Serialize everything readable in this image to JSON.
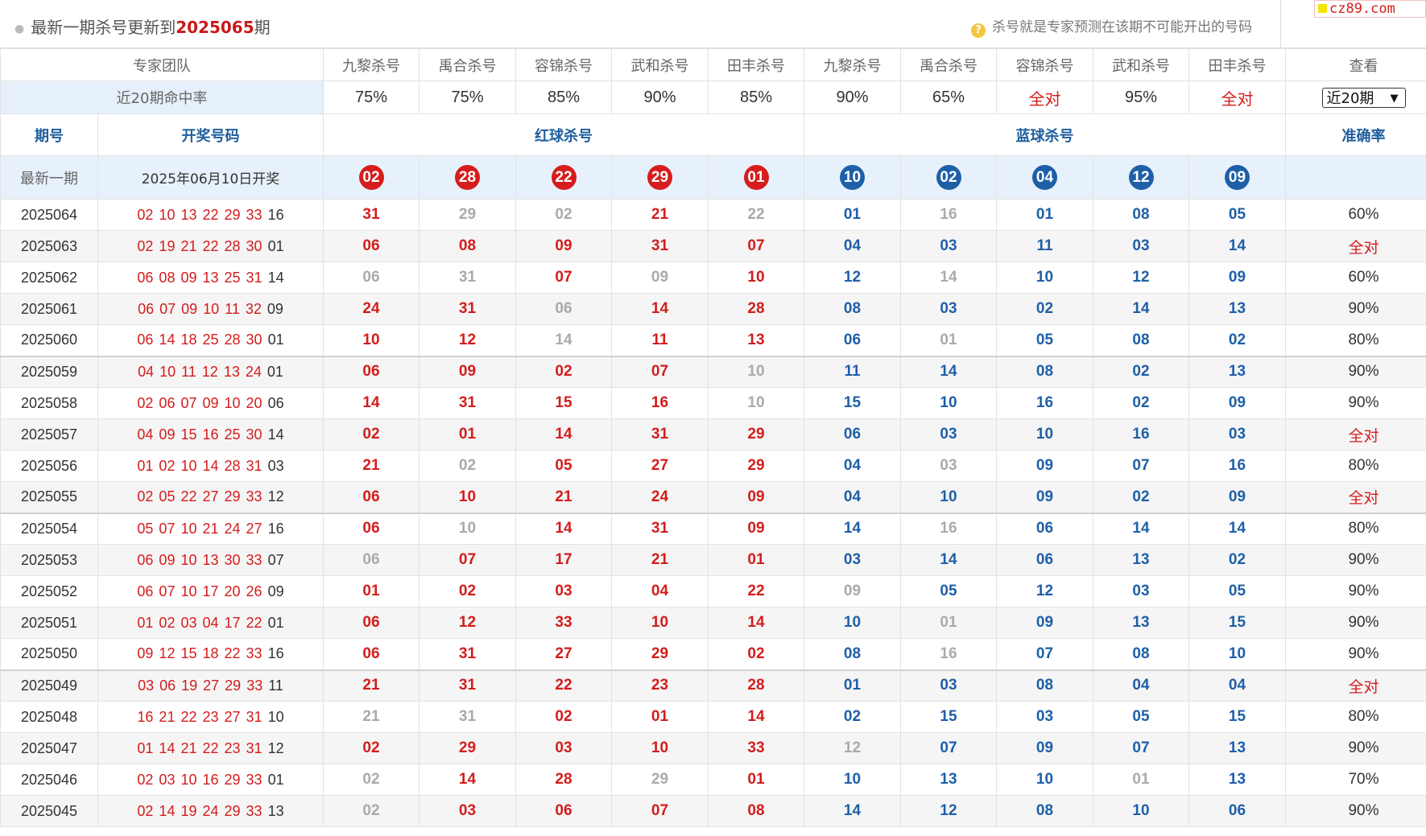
{
  "header": {
    "title_prefix": "最新一期杀号更新到",
    "period": "2025065",
    "title_suffix": "期",
    "note": "杀号就是专家预测在该期不可能开出的号码",
    "brand": "cz89.com"
  },
  "experts_row": {
    "team_label": "专家团队",
    "experts": [
      "九黎杀号",
      "禹合杀号",
      "容锦杀号",
      "武和杀号",
      "田丰杀号",
      "九黎杀号",
      "禹合杀号",
      "容锦杀号",
      "武和杀号",
      "田丰杀号"
    ],
    "view_label": "查看"
  },
  "rate_row": {
    "label": "近20期命中率",
    "rates": [
      "75%",
      "75%",
      "85%",
      "90%",
      "85%",
      "90%",
      "65%",
      "全对",
      "95%",
      "全对"
    ],
    "select_value": "近20期"
  },
  "columns": {
    "issue": "期号",
    "draw": "开奖号码",
    "red_kill": "红球杀号",
    "blue_kill": "蓝球杀号",
    "accuracy": "准确率"
  },
  "latest": {
    "label": "最新一期",
    "date": "2025年06月10日开奖",
    "red_balls": [
      "02",
      "28",
      "22",
      "29",
      "01"
    ],
    "blue_balls": [
      "10",
      "02",
      "04",
      "12",
      "09"
    ]
  },
  "rows": [
    {
      "issue": "2025064",
      "draw_red": "02 10 13 22 29 33",
      "draw_blue": "16",
      "red": [
        "31",
        "29",
        "02",
        "21",
        "22"
      ],
      "red_miss": [
        false,
        true,
        true,
        false,
        true
      ],
      "blue": [
        "01",
        "16",
        "01",
        "08",
        "05"
      ],
      "blue_miss": [
        false,
        true,
        false,
        false,
        false
      ],
      "accuracy": "60%"
    },
    {
      "issue": "2025063",
      "draw_red": "02 19 21 22 28 30",
      "draw_blue": "01",
      "red": [
        "06",
        "08",
        "09",
        "31",
        "07"
      ],
      "red_miss": [
        false,
        false,
        false,
        false,
        false
      ],
      "blue": [
        "04",
        "03",
        "11",
        "03",
        "14"
      ],
      "blue_miss": [
        false,
        false,
        false,
        false,
        false
      ],
      "accuracy": "全对"
    },
    {
      "issue": "2025062",
      "draw_red": "06 08 09 13 25 31",
      "draw_blue": "14",
      "red": [
        "06",
        "31",
        "07",
        "09",
        "10"
      ],
      "red_miss": [
        true,
        true,
        false,
        true,
        false
      ],
      "blue": [
        "12",
        "14",
        "10",
        "12",
        "09"
      ],
      "blue_miss": [
        false,
        true,
        false,
        false,
        false
      ],
      "accuracy": "60%"
    },
    {
      "issue": "2025061",
      "draw_red": "06 07 09 10 11 32",
      "draw_blue": "09",
      "red": [
        "24",
        "31",
        "06",
        "14",
        "28"
      ],
      "red_miss": [
        false,
        false,
        true,
        false,
        false
      ],
      "blue": [
        "08",
        "03",
        "02",
        "14",
        "13"
      ],
      "blue_miss": [
        false,
        false,
        false,
        false,
        false
      ],
      "accuracy": "90%"
    },
    {
      "issue": "2025060",
      "draw_red": "06 14 18 25 28 30",
      "draw_blue": "01",
      "red": [
        "10",
        "12",
        "14",
        "11",
        "13"
      ],
      "red_miss": [
        false,
        false,
        true,
        false,
        false
      ],
      "blue": [
        "06",
        "01",
        "05",
        "08",
        "02"
      ],
      "blue_miss": [
        false,
        true,
        false,
        false,
        false
      ],
      "accuracy": "80%"
    },
    {
      "issue": "2025059",
      "draw_red": "04 10 11 12 13 24",
      "draw_blue": "01",
      "red": [
        "06",
        "09",
        "02",
        "07",
        "10"
      ],
      "red_miss": [
        false,
        false,
        false,
        false,
        true
      ],
      "blue": [
        "11",
        "14",
        "08",
        "02",
        "13"
      ],
      "blue_miss": [
        false,
        false,
        false,
        false,
        false
      ],
      "accuracy": "90%"
    },
    {
      "issue": "2025058",
      "draw_red": "02 06 07 09 10 20",
      "draw_blue": "06",
      "red": [
        "14",
        "31",
        "15",
        "16",
        "10"
      ],
      "red_miss": [
        false,
        false,
        false,
        false,
        true
      ],
      "blue": [
        "15",
        "10",
        "16",
        "02",
        "09"
      ],
      "blue_miss": [
        false,
        false,
        false,
        false,
        false
      ],
      "accuracy": "90%"
    },
    {
      "issue": "2025057",
      "draw_red": "04 09 15 16 25 30",
      "draw_blue": "14",
      "red": [
        "02",
        "01",
        "14",
        "31",
        "29"
      ],
      "red_miss": [
        false,
        false,
        false,
        false,
        false
      ],
      "blue": [
        "06",
        "03",
        "10",
        "16",
        "03"
      ],
      "blue_miss": [
        false,
        false,
        false,
        false,
        false
      ],
      "accuracy": "全对"
    },
    {
      "issue": "2025056",
      "draw_red": "01 02 10 14 28 31",
      "draw_blue": "03",
      "red": [
        "21",
        "02",
        "05",
        "27",
        "29"
      ],
      "red_miss": [
        false,
        true,
        false,
        false,
        false
      ],
      "blue": [
        "04",
        "03",
        "09",
        "07",
        "16"
      ],
      "blue_miss": [
        false,
        true,
        false,
        false,
        false
      ],
      "accuracy": "80%"
    },
    {
      "issue": "2025055",
      "draw_red": "02 05 22 27 29 33",
      "draw_blue": "12",
      "red": [
        "06",
        "10",
        "21",
        "24",
        "09"
      ],
      "red_miss": [
        false,
        false,
        false,
        false,
        false
      ],
      "blue": [
        "04",
        "10",
        "09",
        "02",
        "09"
      ],
      "blue_miss": [
        false,
        false,
        false,
        false,
        false
      ],
      "accuracy": "全对"
    },
    {
      "issue": "2025054",
      "draw_red": "05 07 10 21 24 27",
      "draw_blue": "16",
      "red": [
        "06",
        "10",
        "14",
        "31",
        "09"
      ],
      "red_miss": [
        false,
        true,
        false,
        false,
        false
      ],
      "blue": [
        "14",
        "16",
        "06",
        "14",
        "14"
      ],
      "blue_miss": [
        false,
        true,
        false,
        false,
        false
      ],
      "accuracy": "80%"
    },
    {
      "issue": "2025053",
      "draw_red": "06 09 10 13 30 33",
      "draw_blue": "07",
      "red": [
        "06",
        "07",
        "17",
        "21",
        "01"
      ],
      "red_miss": [
        true,
        false,
        false,
        false,
        false
      ],
      "blue": [
        "03",
        "14",
        "06",
        "13",
        "02"
      ],
      "blue_miss": [
        false,
        false,
        false,
        false,
        false
      ],
      "accuracy": "90%"
    },
    {
      "issue": "2025052",
      "draw_red": "06 07 10 17 20 26",
      "draw_blue": "09",
      "red": [
        "01",
        "02",
        "03",
        "04",
        "22"
      ],
      "red_miss": [
        false,
        false,
        false,
        false,
        false
      ],
      "blue": [
        "09",
        "05",
        "12",
        "03",
        "05"
      ],
      "blue_miss": [
        true,
        false,
        false,
        false,
        false
      ],
      "accuracy": "90%"
    },
    {
      "issue": "2025051",
      "draw_red": "01 02 03 04 17 22",
      "draw_blue": "01",
      "red": [
        "06",
        "12",
        "33",
        "10",
        "14"
      ],
      "red_miss": [
        false,
        false,
        false,
        false,
        false
      ],
      "blue": [
        "10",
        "01",
        "09",
        "13",
        "15"
      ],
      "blue_miss": [
        false,
        true,
        false,
        false,
        false
      ],
      "accuracy": "90%"
    },
    {
      "issue": "2025050",
      "draw_red": "09 12 15 18 22 33",
      "draw_blue": "16",
      "red": [
        "06",
        "31",
        "27",
        "29",
        "02"
      ],
      "red_miss": [
        false,
        false,
        false,
        false,
        false
      ],
      "blue": [
        "08",
        "16",
        "07",
        "08",
        "10"
      ],
      "blue_miss": [
        false,
        true,
        false,
        false,
        false
      ],
      "accuracy": "90%"
    },
    {
      "issue": "2025049",
      "draw_red": "03 06 19 27 29 33",
      "draw_blue": "11",
      "red": [
        "21",
        "31",
        "22",
        "23",
        "28"
      ],
      "red_miss": [
        false,
        false,
        false,
        false,
        false
      ],
      "blue": [
        "01",
        "03",
        "08",
        "04",
        "04"
      ],
      "blue_miss": [
        false,
        false,
        false,
        false,
        false
      ],
      "accuracy": "全对"
    },
    {
      "issue": "2025048",
      "draw_red": "16 21 22 23 27 31",
      "draw_blue": "10",
      "red": [
        "21",
        "31",
        "02",
        "01",
        "14"
      ],
      "red_miss": [
        true,
        true,
        false,
        false,
        false
      ],
      "blue": [
        "02",
        "15",
        "03",
        "05",
        "15"
      ],
      "blue_miss": [
        false,
        false,
        false,
        false,
        false
      ],
      "accuracy": "80%"
    },
    {
      "issue": "2025047",
      "draw_red": "01 14 21 22 23 31",
      "draw_blue": "12",
      "red": [
        "02",
        "29",
        "03",
        "10",
        "33"
      ],
      "red_miss": [
        false,
        false,
        false,
        false,
        false
      ],
      "blue": [
        "12",
        "07",
        "09",
        "07",
        "13"
      ],
      "blue_miss": [
        true,
        false,
        false,
        false,
        false
      ],
      "accuracy": "90%"
    },
    {
      "issue": "2025046",
      "draw_red": "02 03 10 16 29 33",
      "draw_blue": "01",
      "red": [
        "02",
        "14",
        "28",
        "29",
        "01"
      ],
      "red_miss": [
        true,
        false,
        false,
        true,
        false
      ],
      "blue": [
        "10",
        "13",
        "10",
        "01",
        "13"
      ],
      "blue_miss": [
        false,
        false,
        false,
        true,
        false
      ],
      "accuracy": "70%"
    },
    {
      "issue": "2025045",
      "draw_red": "02 14 19 24 29 33",
      "draw_blue": "13",
      "red": [
        "02",
        "03",
        "06",
        "07",
        "08"
      ],
      "red_miss": [
        true,
        false,
        false,
        false,
        false
      ],
      "blue": [
        "14",
        "12",
        "08",
        "10",
        "06"
      ],
      "blue_miss": [
        false,
        false,
        false,
        false,
        false
      ],
      "accuracy": "90%"
    }
  ],
  "colors": {
    "red": "#d41c1c",
    "blue": "#1e5fa8",
    "miss": "#aaaaaa",
    "header_blue": "#1f5e9e",
    "highlight_bg": "#e7f1fb"
  }
}
